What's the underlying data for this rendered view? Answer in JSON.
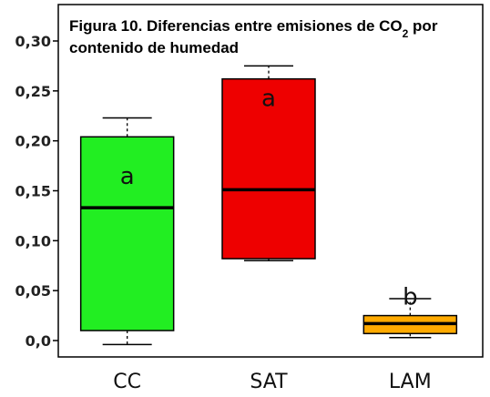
{
  "chart_data": {
    "type": "box",
    "title_lines": [
      {
        "prefix": "Figura 10. Diferencias entre emisiones de CO",
        "sub": "2",
        "suffix": " por"
      },
      {
        "prefix": "contenido de humedad",
        "sub": "",
        "suffix": ""
      }
    ],
    "xlabel": "",
    "ylabel": "",
    "ylim": [
      0,
      0.3
    ],
    "yticks": [
      0.0,
      0.05,
      0.1,
      0.15,
      0.2,
      0.25,
      0.3
    ],
    "ytick_labels": [
      "0,0",
      "0,05",
      "0,10",
      "0,15",
      "0,20",
      "0,25",
      "0,30"
    ],
    "categories": [
      "CC",
      "SAT",
      "LAM"
    ],
    "boxes": [
      {
        "name": "CC",
        "min": -0.004,
        "q1": 0.01,
        "median": 0.133,
        "q3": 0.204,
        "max": 0.223,
        "color": "#22ee22",
        "group": "a"
      },
      {
        "name": "SAT",
        "min": 0.08,
        "q1": 0.082,
        "median": 0.151,
        "q3": 0.262,
        "max": 0.275,
        "color": "#ee0000",
        "group": "a"
      },
      {
        "name": "LAM",
        "min": 0.003,
        "q1": 0.007,
        "median": 0.017,
        "q3": 0.025,
        "max": 0.042,
        "color": "#ffaa00",
        "group": "b"
      }
    ],
    "grid": false,
    "legend": "none"
  }
}
